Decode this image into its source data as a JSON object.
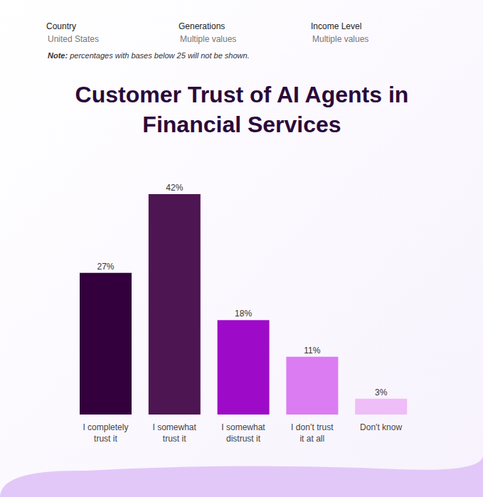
{
  "filters": [
    {
      "label": "Country",
      "value": "United States"
    },
    {
      "label": "Generations",
      "value": "Multiple values"
    },
    {
      "label": "Income Level",
      "value": "Multiple values"
    }
  ],
  "note": "Note: percentages with bases below 25 will not be shown.",
  "chart_data": {
    "type": "bar",
    "title": "Customer Trust of AI Agents in Financial Services",
    "categories": [
      "I completely trust it",
      "I somewhat trust it",
      "I somewhat distrust it",
      "I don’t trust it at all",
      "Don't know"
    ],
    "values": [
      27,
      42,
      18,
      11,
      3
    ],
    "value_labels": [
      "27%",
      "42%",
      "18%",
      "11%",
      "3%"
    ],
    "colors": [
      "#33003d",
      "#4e1553",
      "#9d0bc9",
      "#db7cf2",
      "#efbdf8"
    ],
    "ylim": [
      0,
      42
    ],
    "data_labels": true,
    "tick_labels": "x",
    "grid": false
  }
}
